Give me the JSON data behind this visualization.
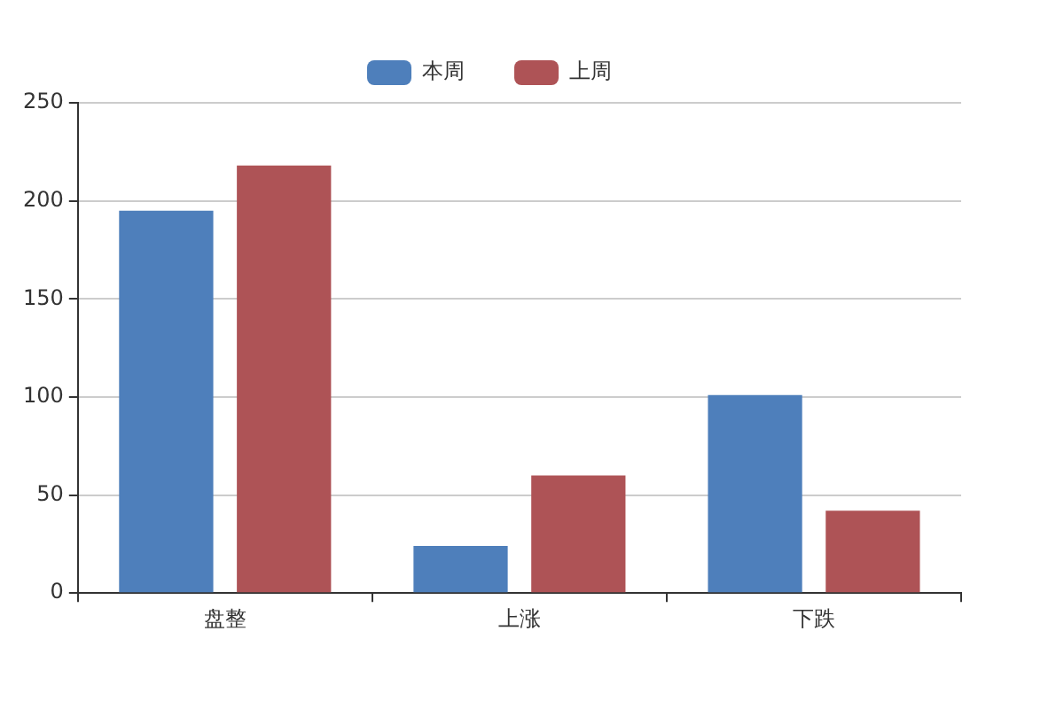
{
  "chart_data": {
    "type": "bar",
    "categories": [
      "盘整",
      "上涨",
      "下跌"
    ],
    "series": [
      {
        "name": "本周",
        "color": "#4e7fbb",
        "values": [
          195,
          24,
          101
        ]
      },
      {
        "name": "上周",
        "color": "#ae5356",
        "values": [
          218,
          60,
          42
        ]
      }
    ],
    "ylim": [
      0,
      250
    ],
    "yticks": [
      0,
      50,
      100,
      150,
      200,
      250
    ],
    "grid": "y",
    "legend": "top"
  }
}
